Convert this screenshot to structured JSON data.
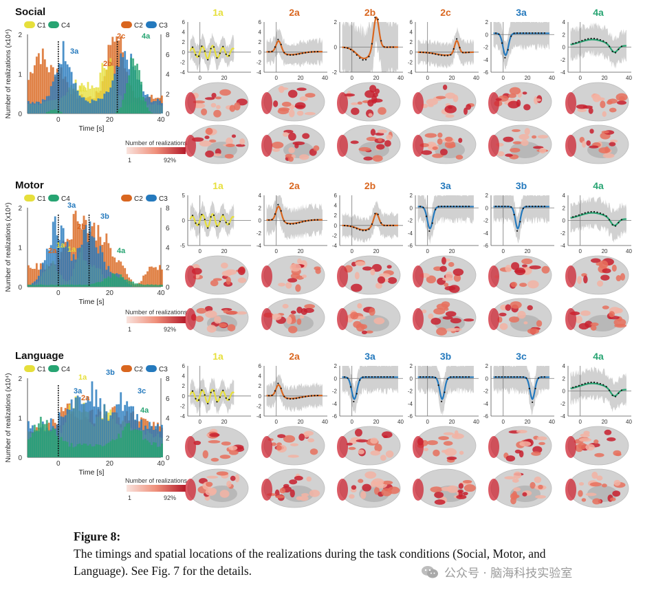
{
  "colors": {
    "C1": "#e6df3b",
    "C2": "#d9661f",
    "C3": "#2479bd",
    "C4": "#27a472",
    "gray": "#c9c9c9"
  },
  "legend_text": {
    "c1": "C1",
    "c2": "C2",
    "c3": "C3",
    "c4": "C4"
  },
  "hist_axes": {
    "ylabel": "Number of realizations (x10⁴)",
    "xlabel": "Time [s]",
    "x_ticks": [
      "0",
      "20",
      "40"
    ],
    "y_left": [
      "0",
      "1",
      "2"
    ],
    "y_right": [
      "0",
      "2",
      "4",
      "6",
      "8"
    ]
  },
  "colorbar": {
    "title": "Number of realizations",
    "min": "1",
    "max": "92%"
  },
  "rows": [
    {
      "condition": "Social",
      "chart_data": {
        "type": "bar",
        "title": "Social",
        "xlabel": "Time [s]",
        "ylabel": "Number of realizations (x10⁴)",
        "xlim": [
          -12,
          40
        ],
        "ylim": [
          0,
          2
        ],
        "y2lim": [
          0,
          8
        ],
        "series": [
          {
            "name": "C1"
          },
          {
            "name": "C2"
          },
          {
            "name": "C3"
          },
          {
            "name": "C4"
          }
        ]
      },
      "hist_labels": [
        {
          "text": "3a",
          "c": "C3"
        },
        {
          "text": "2b",
          "c": "C2"
        },
        {
          "text": "1a",
          "c": "C1"
        },
        {
          "text": "2c",
          "c": "C2"
        },
        {
          "text": "4a",
          "c": "C4"
        }
      ],
      "panels": [
        {
          "label": "1a",
          "c": "C1",
          "yticks": [
            "6",
            "4",
            "2",
            "0",
            "-2",
            "-4"
          ],
          "xticks": [
            "0",
            "20"
          ]
        },
        {
          "label": "2a",
          "c": "C2",
          "yticks": [
            "6",
            "4",
            "2",
            "0",
            "-2",
            "-4"
          ],
          "xticks": [
            "0",
            "20",
            "40"
          ]
        },
        {
          "label": "2b",
          "c": "C2",
          "yticks": [
            "2",
            "0",
            "-2"
          ],
          "xticks": [
            "0",
            "20",
            "40"
          ]
        },
        {
          "label": "2c",
          "c": "C2",
          "yticks": [
            "6",
            "4",
            "2",
            "0",
            "-2",
            "-4"
          ],
          "xticks": [
            "0",
            "20",
            "40"
          ]
        },
        {
          "label": "3a",
          "c": "C3",
          "yticks": [
            "2",
            "0",
            "-2",
            "-4",
            "-6"
          ],
          "xticks": [
            "0",
            "20",
            "40"
          ]
        },
        {
          "label": "4a",
          "c": "C4",
          "yticks": [
            "4",
            "2",
            "0",
            "-2",
            "-4"
          ],
          "xticks": [
            "0",
            "20",
            "40"
          ]
        }
      ]
    },
    {
      "condition": "Motor",
      "chart_data": {
        "type": "bar",
        "title": "Motor",
        "xlabel": "Time [s]",
        "ylabel": "Number of realizations (x10⁴)",
        "xlim": [
          -12,
          40
        ],
        "ylim": [
          0,
          2
        ],
        "y2lim": [
          0,
          8
        ],
        "series": [
          {
            "name": "C1"
          },
          {
            "name": "C2"
          },
          {
            "name": "C3"
          },
          {
            "name": "C4"
          }
        ]
      },
      "hist_labels": [
        {
          "text": "3a",
          "c": "C3"
        },
        {
          "text": "1a",
          "c": "C1"
        },
        {
          "text": "2b",
          "c": "C2"
        },
        {
          "text": "2a",
          "c": "C2"
        },
        {
          "text": "1a",
          "c": "C1"
        },
        {
          "text": "3b",
          "c": "C3"
        },
        {
          "text": "4a",
          "c": "C4"
        }
      ],
      "panels": [
        {
          "label": "1a",
          "c": "C1",
          "yticks": [
            "5",
            "0",
            "-5"
          ],
          "xticks": [
            "0",
            "20"
          ]
        },
        {
          "label": "2a",
          "c": "C2",
          "yticks": [
            "4",
            "2",
            "0",
            "-2",
            "-4"
          ],
          "xticks": [
            "0",
            "20"
          ]
        },
        {
          "label": "2b",
          "c": "C2",
          "yticks": [
            "6",
            "4",
            "2",
            "0",
            "-2",
            "-4"
          ],
          "xticks": [
            "0",
            "20"
          ]
        },
        {
          "label": "3a",
          "c": "C3",
          "yticks": [
            "2",
            "0",
            "-2",
            "-4",
            "-6"
          ],
          "xticks": [
            "0",
            "20"
          ]
        },
        {
          "label": "3b",
          "c": "C3",
          "yticks": [
            "2",
            "0",
            "-2",
            "-4",
            "-6"
          ],
          "xticks": [
            "0",
            "20"
          ]
        },
        {
          "label": "4a",
          "c": "C4",
          "yticks": [
            "4",
            "2",
            "0",
            "-2",
            "-4"
          ],
          "xticks": [
            "0",
            "20",
            "40"
          ]
        }
      ]
    },
    {
      "condition": "Language",
      "chart_data": {
        "type": "bar",
        "title": "Language",
        "xlabel": "Time [s]",
        "ylabel": "Number of realizations (x10⁴)",
        "xlim": [
          -12,
          40
        ],
        "ylim": [
          0,
          2
        ],
        "y2lim": [
          0,
          8
        ],
        "series": [
          {
            "name": "C1"
          },
          {
            "name": "C2"
          },
          {
            "name": "C3"
          },
          {
            "name": "C4"
          }
        ]
      },
      "hist_labels": [
        {
          "text": "1a",
          "c": "C1"
        },
        {
          "text": "3b",
          "c": "C3"
        },
        {
          "text": "3a",
          "c": "C3"
        },
        {
          "text": "2a",
          "c": "C2"
        },
        {
          "text": "3c",
          "c": "C3"
        },
        {
          "text": "4a",
          "c": "C4"
        }
      ],
      "panels": [
        {
          "label": "1a",
          "c": "C1",
          "yticks": [
            "6",
            "4",
            "2",
            "0",
            "-2",
            "-4"
          ],
          "xticks": [
            "0",
            "20"
          ]
        },
        {
          "label": "2a",
          "c": "C2",
          "yticks": [
            "6",
            "4",
            "2",
            "0",
            "-2",
            "-4"
          ],
          "xticks": [
            "0",
            "20",
            "40"
          ]
        },
        {
          "label": "3a",
          "c": "C3",
          "yticks": [
            "2",
            "0",
            "-2",
            "-4",
            "-6"
          ],
          "xticks": [
            "0",
            "20",
            "40"
          ]
        },
        {
          "label": "3b",
          "c": "C3",
          "yticks": [
            "2",
            "0",
            "-2",
            "-4",
            "-6"
          ],
          "xticks": [
            "0",
            "20",
            "40"
          ]
        },
        {
          "label": "3c",
          "c": "C3",
          "yticks": [
            "2",
            "0",
            "-2",
            "-4",
            "-6"
          ],
          "xticks": [
            "0",
            "20",
            "40"
          ]
        },
        {
          "label": "4a",
          "c": "C4",
          "yticks": [
            "4",
            "2",
            "0",
            "-2",
            "-4"
          ],
          "xticks": [
            "0",
            "20",
            "40"
          ]
        }
      ]
    }
  ],
  "caption": {
    "label": "Figure 8:",
    "text": "The timings and spatial locations of the realizations during the task conditions (Social, Motor, and Language). See Fig. 7 for the details."
  },
  "watermark": "公众号 · 脑海科技实验室"
}
